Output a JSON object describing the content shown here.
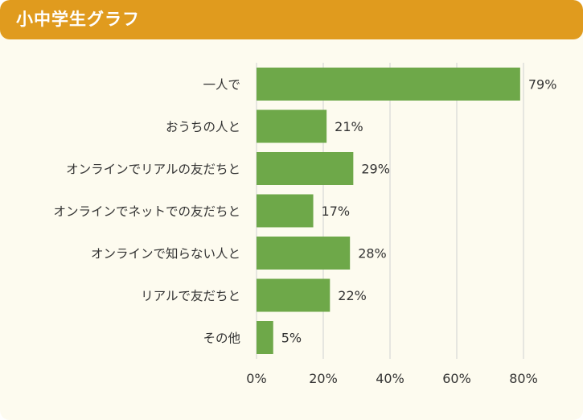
{
  "header": {
    "title": "小中学生グラフ"
  },
  "colors": {
    "header_bg": "#e09b1e",
    "card_bg": "#fdfbef",
    "bar": "#6ea849",
    "grid": "#d0d0d0",
    "text": "#333333"
  },
  "chart_data": {
    "type": "bar",
    "orientation": "horizontal",
    "categories": [
      "一人で",
      "おうちの人と",
      "オンラインでリアルの友だちと",
      "オンラインでネットでの友だちと",
      "オンラインで知らない人と",
      "リアルで友だちと",
      "その他"
    ],
    "values": [
      79,
      21,
      29,
      17,
      28,
      22,
      5
    ],
    "value_labels": [
      "79%",
      "21%",
      "29%",
      "17%",
      "28%",
      "22%",
      "5%"
    ],
    "xlim": [
      0,
      80
    ],
    "xticks": [
      0,
      20,
      40,
      60,
      80
    ],
    "xtick_labels": [
      "0%",
      "20%",
      "40%",
      "60%",
      "80%"
    ],
    "grid": true,
    "legend": "none"
  }
}
